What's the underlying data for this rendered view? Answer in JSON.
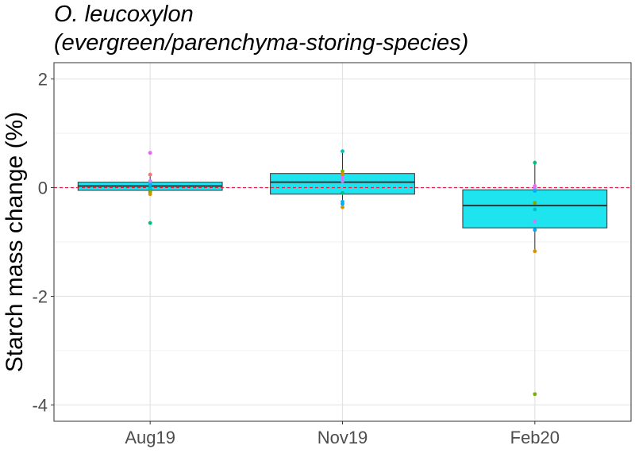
{
  "chart_data": {
    "type": "box",
    "title_line1": "O. leucoxylon",
    "title_line2": "(evergreen/parenchyma-storing-species)",
    "xlabel": "",
    "ylabel": "Starch mass change (%)",
    "ylim": [
      -4.3,
      2.3
    ],
    "yticks": [
      -4,
      -2,
      0,
      2
    ],
    "ytick_labels": [
      "-4",
      "-2",
      "0",
      "2"
    ],
    "categories": [
      "Aug19",
      "Nov19",
      "Feb20"
    ],
    "reference_line": {
      "y": 0,
      "style": "dashed",
      "color": "#e0214a"
    },
    "box_fill": "#1de4ef",
    "grid": true,
    "boxes": [
      {
        "category": "Aug19",
        "whisker_low": -0.12,
        "q1": -0.05,
        "median": 0.03,
        "q3": 0.1,
        "whisker_high": 0.24
      },
      {
        "category": "Nov19",
        "whisker_low": -0.36,
        "q1": -0.12,
        "median": 0.1,
        "q3": 0.26,
        "whisker_high": 0.66
      },
      {
        "category": "Feb20",
        "whisker_low": -1.17,
        "q1": -0.74,
        "median": -0.33,
        "q3": -0.04,
        "whisker_high": 0.46
      }
    ],
    "points": [
      {
        "category": "Aug19",
        "y": 0.64,
        "color": "#c77cff"
      },
      {
        "category": "Aug19",
        "y": 0.64,
        "color": "#e76bf3"
      },
      {
        "category": "Aug19",
        "y": 0.24,
        "color": "#f8766d"
      },
      {
        "category": "Aug19",
        "y": 0.12,
        "color": "#c77cff"
      },
      {
        "category": "Aug19",
        "y": 0.05,
        "color": "#00b0f6"
      },
      {
        "category": "Aug19",
        "y": -0.02,
        "color": "#00bfc4"
      },
      {
        "category": "Aug19",
        "y": -0.08,
        "color": "#7cae00"
      },
      {
        "category": "Aug19",
        "y": -0.12,
        "color": "#d89000"
      },
      {
        "category": "Aug19",
        "y": -0.65,
        "color": "#00bf7d"
      },
      {
        "category": "Nov19",
        "y": 0.67,
        "color": "#00bfc4"
      },
      {
        "category": "Nov19",
        "y": 0.3,
        "color": "#7cae00"
      },
      {
        "category": "Nov19",
        "y": 0.24,
        "color": "#d89000"
      },
      {
        "category": "Nov19",
        "y": 0.18,
        "color": "#e76bf3"
      },
      {
        "category": "Nov19",
        "y": 0.12,
        "color": "#c77cff"
      },
      {
        "category": "Nov19",
        "y": -0.1,
        "color": "#00bf7d"
      },
      {
        "category": "Nov19",
        "y": -0.26,
        "color": "#00b0f6"
      },
      {
        "category": "Nov19",
        "y": -0.3,
        "color": "#00a9ff"
      },
      {
        "category": "Nov19",
        "y": -0.36,
        "color": "#d89000"
      },
      {
        "category": "Feb20",
        "y": 0.46,
        "color": "#00bf7d"
      },
      {
        "category": "Feb20",
        "y": 0.03,
        "color": "#e76bf3"
      },
      {
        "category": "Feb20",
        "y": -0.02,
        "color": "#c77cff"
      },
      {
        "category": "Feb20",
        "y": -0.06,
        "color": "#00b0f6"
      },
      {
        "category": "Feb20",
        "y": -0.28,
        "color": "#7cae00"
      },
      {
        "category": "Feb20",
        "y": -0.4,
        "color": "#00bfc4"
      },
      {
        "category": "Feb20",
        "y": -0.62,
        "color": "#c77cff"
      },
      {
        "category": "Feb20",
        "y": -0.78,
        "color": "#00a9ff"
      },
      {
        "category": "Feb20",
        "y": -1.17,
        "color": "#d89000"
      },
      {
        "category": "Feb20",
        "y": -3.8,
        "color": "#7cae00"
      }
    ]
  }
}
